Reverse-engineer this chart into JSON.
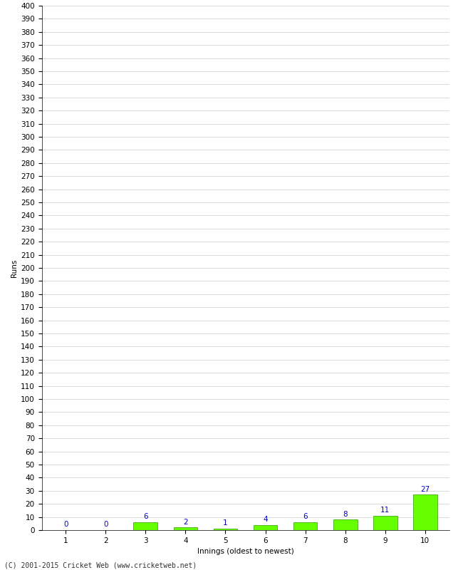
{
  "xlabel": "Innings (oldest to newest)",
  "ylabel": "Runs",
  "categories": [
    1,
    2,
    3,
    4,
    5,
    6,
    7,
    8,
    9,
    10
  ],
  "values": [
    0,
    0,
    6,
    2,
    1,
    4,
    6,
    8,
    11,
    27
  ],
  "bar_color": "#66ff00",
  "bar_edge_color": "#339900",
  "value_color": "#0000cc",
  "value_fontsize": 7.5,
  "ylabel_fontsize": 7.5,
  "xlabel_fontsize": 7.5,
  "tick_fontsize": 7.5,
  "footer_fontsize": 7,
  "ylim": [
    0,
    400
  ],
  "ytick_step": 10,
  "background_color": "#ffffff",
  "grid_color": "#cccccc",
  "footer": "(C) 2001-2015 Cricket Web (www.cricketweb.net)"
}
